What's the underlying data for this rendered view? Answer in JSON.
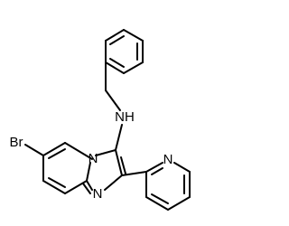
{
  "atoms": [
    {
      "label": "NH"
    },
    {
      "label": "Br"
    },
    {
      "label": "N"
    },
    {
      "label": "N"
    },
    {
      "label": "N"
    }
  ]
}
